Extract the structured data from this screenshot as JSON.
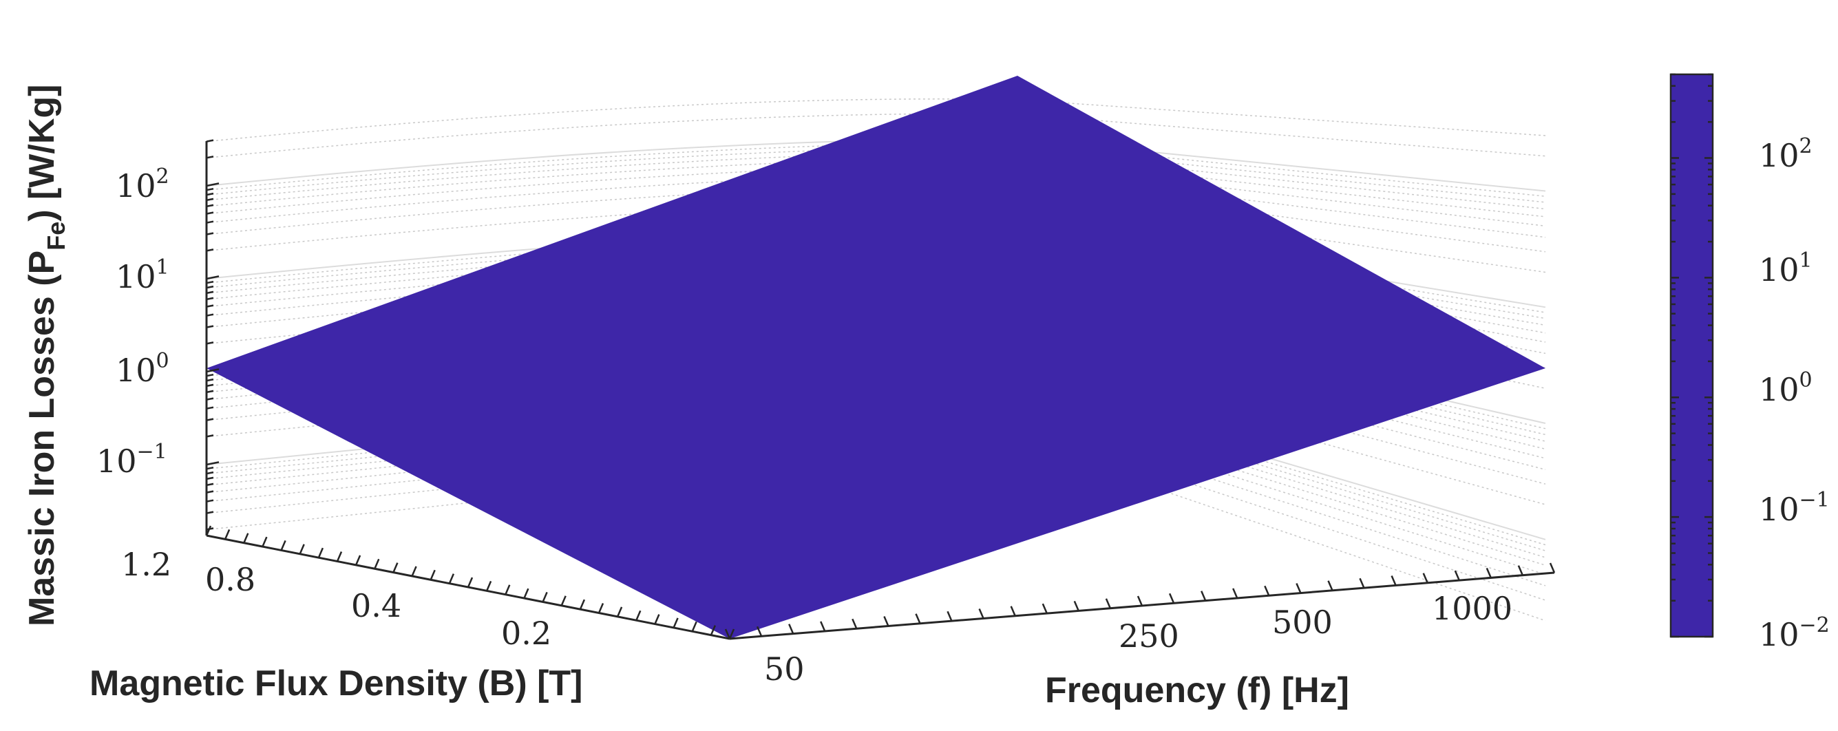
{
  "chart_data": {
    "type": "surface",
    "title": "",
    "xlabel": "Frequency (f) [Hz]",
    "ylabel": "Magnetic Flux Density (B) [T]",
    "zlabel": {
      "main": "Massic Iron Losses (P",
      "sub": "Fe",
      "end": ") [W/Kg]"
    },
    "x_scale": "log",
    "y_scale": "log",
    "z_scale": "log",
    "x_ticks": [
      "50",
      "250",
      "500",
      "1000"
    ],
    "y_ticks": [
      "1.2",
      "0.8",
      "0.4",
      "0.2"
    ],
    "z_ticks": [
      {
        "base": "10",
        "exp": "2"
      },
      {
        "base": "10",
        "exp": "1"
      },
      {
        "base": "10",
        "exp": "0"
      },
      {
        "base": "10",
        "exp": "−1"
      }
    ],
    "colorbar_ticks": [
      {
        "base": "10",
        "exp": "2"
      },
      {
        "base": "10",
        "exp": "1"
      },
      {
        "base": "10",
        "exp": "0"
      },
      {
        "base": "10",
        "exp": "−1"
      },
      {
        "base": "10",
        "exp": "−2"
      }
    ],
    "colorbar_range": [
      0.01,
      500
    ],
    "colormap": "parula",
    "colormap_stops": [
      "#3e26a8",
      "#4748f2",
      "#2e87f7",
      "#1cabde",
      "#02bfc1",
      "#2fc59e",
      "#5bca7d",
      "#8cc14f",
      "#c1b82f",
      "#eabb3d",
      "#fad934",
      "#f9fb15"
    ],
    "corner_values": [
      {
        "B": 0.1,
        "f": 50,
        "P": 0.015
      },
      {
        "B": 1.5,
        "f": 50,
        "P": 1.2
      },
      {
        "B": 0.1,
        "f": 1500,
        "P": 1.2
      },
      {
        "B": 1.5,
        "f": 1500,
        "P": 500
      }
    ],
    "grid": true
  }
}
